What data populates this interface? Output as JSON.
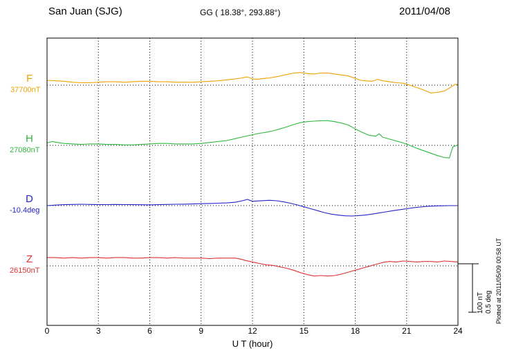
{
  "header": {
    "station": "San Juan (SJG)",
    "coordinates": "GG ( 18.38°, 293.88°)",
    "date": "2011/04/08"
  },
  "side_note": "Plotted at 2011/05/09 00:58 UT",
  "scale_bar": {
    "nt_label": "100 nT",
    "deg_label": "0.5 deg"
  },
  "chart_data": {
    "type": "line",
    "title": "San Juan (SJG) magnetogram 2011/04/08",
    "xlabel": "U T (hour)",
    "ylabel": "",
    "xlim": [
      0,
      24
    ],
    "x_ticks": [
      0,
      3,
      6,
      9,
      12,
      15,
      18,
      21,
      24
    ],
    "grid": "dotted vertical gridlines at 3-hour ticks, dotted horizontal baseline per component",
    "legend_position": "left of plot, one colored label per trace",
    "scale": {
      "per_division_nT": 100,
      "per_division_deg": 0.5
    },
    "series": [
      {
        "id": "F",
        "label": "F",
        "baseline_label": "37700nT",
        "baseline_value": 37700,
        "unit": "nT",
        "color": "#efa100",
        "points": [
          [
            0,
            10
          ],
          [
            0.5,
            9
          ],
          [
            1,
            8
          ],
          [
            1.5,
            6
          ],
          [
            2,
            5
          ],
          [
            2.5,
            5
          ],
          [
            3,
            6
          ],
          [
            3.5,
            7
          ],
          [
            4,
            7
          ],
          [
            4.5,
            6
          ],
          [
            5,
            7
          ],
          [
            5.5,
            8
          ],
          [
            6,
            8
          ],
          [
            6.5,
            7
          ],
          [
            7,
            7
          ],
          [
            7.5,
            6
          ],
          [
            8,
            6
          ],
          [
            8.5,
            6
          ],
          [
            9,
            7
          ],
          [
            9.5,
            8
          ],
          [
            10,
            9
          ],
          [
            10.5,
            11
          ],
          [
            11,
            13
          ],
          [
            11.4,
            15
          ],
          [
            11.7,
            17
          ],
          [
            12,
            13
          ],
          [
            12.3,
            12
          ],
          [
            12.7,
            14
          ],
          [
            13,
            15
          ],
          [
            13.5,
            18
          ],
          [
            14,
            22
          ],
          [
            14.4,
            25
          ],
          [
            14.8,
            26
          ],
          [
            15.2,
            24
          ],
          [
            15.6,
            23
          ],
          [
            16,
            25
          ],
          [
            16.4,
            25
          ],
          [
            16.8,
            23
          ],
          [
            17.2,
            21
          ],
          [
            17.6,
            19
          ],
          [
            18,
            14
          ],
          [
            18.3,
            10
          ],
          [
            18.6,
            9
          ],
          [
            19,
            8
          ],
          [
            19.3,
            12
          ],
          [
            19.6,
            9
          ],
          [
            20,
            7
          ],
          [
            20.4,
            5
          ],
          [
            20.8,
            4
          ],
          [
            21.2,
            0
          ],
          [
            21.6,
            -5
          ],
          [
            22,
            -10
          ],
          [
            22.4,
            -16
          ],
          [
            22.8,
            -15
          ],
          [
            23.2,
            -12
          ],
          [
            23.5,
            -6
          ],
          [
            23.8,
            1
          ],
          [
            24,
            2
          ]
        ]
      },
      {
        "id": "H",
        "label": "H",
        "baseline_label": "27080nT",
        "baseline_value": 27080,
        "unit": "nT",
        "color": "#2eb93e",
        "points": [
          [
            0,
            5
          ],
          [
            0.3,
            8
          ],
          [
            0.6,
            6
          ],
          [
            1,
            4
          ],
          [
            1.5,
            3
          ],
          [
            2,
            2
          ],
          [
            2.5,
            3
          ],
          [
            3,
            3
          ],
          [
            3.5,
            2
          ],
          [
            4,
            2
          ],
          [
            4.5,
            1
          ],
          [
            5,
            1
          ],
          [
            5.5,
            2
          ],
          [
            6,
            3
          ],
          [
            6.5,
            4
          ],
          [
            7,
            4
          ],
          [
            7.5,
            3
          ],
          [
            8,
            3
          ],
          [
            8.5,
            3
          ],
          [
            9,
            4
          ],
          [
            9.5,
            6
          ],
          [
            10,
            8
          ],
          [
            10.5,
            10
          ],
          [
            11,
            14
          ],
          [
            11.5,
            18
          ],
          [
            12,
            22
          ],
          [
            12.4,
            25
          ],
          [
            12.8,
            27
          ],
          [
            13.2,
            30
          ],
          [
            13.6,
            34
          ],
          [
            14,
            38
          ],
          [
            14.4,
            43
          ],
          [
            14.8,
            47
          ],
          [
            15.2,
            49
          ],
          [
            15.6,
            50
          ],
          [
            16,
            51
          ],
          [
            16.4,
            51
          ],
          [
            16.8,
            49
          ],
          [
            17.2,
            46
          ],
          [
            17.6,
            42
          ],
          [
            18,
            34
          ],
          [
            18.4,
            27
          ],
          [
            18.8,
            21
          ],
          [
            19.2,
            19
          ],
          [
            19.4,
            24
          ],
          [
            19.6,
            17
          ],
          [
            20,
            13
          ],
          [
            20.4,
            9
          ],
          [
            20.8,
            5
          ],
          [
            21.2,
            0
          ],
          [
            21.6,
            -6
          ],
          [
            22,
            -11
          ],
          [
            22.4,
            -16
          ],
          [
            22.8,
            -21
          ],
          [
            23.2,
            -25
          ],
          [
            23.5,
            -26
          ],
          [
            23.7,
            -3
          ],
          [
            24,
            1
          ]
        ]
      },
      {
        "id": "D",
        "label": "D",
        "baseline_label": "-10.4deg",
        "baseline_value": -10.4,
        "unit": "deg",
        "color": "#2323c8",
        "points": [
          [
            0,
            0
          ],
          [
            0.5,
            0.006
          ],
          [
            1,
            0.01
          ],
          [
            1.5,
            0.012
          ],
          [
            2,
            0.014
          ],
          [
            2.5,
            0.012
          ],
          [
            3,
            0.01
          ],
          [
            3.5,
            0.011
          ],
          [
            4,
            0.012
          ],
          [
            4.5,
            0.011
          ],
          [
            5,
            0.01
          ],
          [
            5.5,
            0.009
          ],
          [
            6,
            0.008
          ],
          [
            6.5,
            0.01
          ],
          [
            7,
            0.012
          ],
          [
            7.5,
            0.014
          ],
          [
            8,
            0.015
          ],
          [
            8.5,
            0.017
          ],
          [
            9,
            0.02
          ],
          [
            9.5,
            0.022
          ],
          [
            10,
            0.025
          ],
          [
            10.5,
            0.028
          ],
          [
            11,
            0.035
          ],
          [
            11.4,
            0.05
          ],
          [
            11.7,
            0.064
          ],
          [
            12,
            0.045
          ],
          [
            12.3,
            0.048
          ],
          [
            12.7,
            0.052
          ],
          [
            13,
            0.055
          ],
          [
            13.4,
            0.05
          ],
          [
            13.8,
            0.04
          ],
          [
            14.2,
            0.025
          ],
          [
            14.6,
            0.008
          ],
          [
            15,
            -0.012
          ],
          [
            15.4,
            -0.032
          ],
          [
            15.8,
            -0.052
          ],
          [
            16.2,
            -0.072
          ],
          [
            16.6,
            -0.088
          ],
          [
            17,
            -0.098
          ],
          [
            17.4,
            -0.105
          ],
          [
            17.8,
            -0.107
          ],
          [
            18.2,
            -0.103
          ],
          [
            18.6,
            -0.097
          ],
          [
            19,
            -0.087
          ],
          [
            19.4,
            -0.076
          ],
          [
            19.8,
            -0.064
          ],
          [
            20.2,
            -0.052
          ],
          [
            20.6,
            -0.042
          ],
          [
            21,
            -0.032
          ],
          [
            21.4,
            -0.022
          ],
          [
            21.8,
            -0.014
          ],
          [
            22.2,
            -0.008
          ],
          [
            22.6,
            -0.004
          ],
          [
            23,
            -0.002
          ],
          [
            23.5,
            0
          ],
          [
            24,
            0
          ]
        ]
      },
      {
        "id": "Z",
        "label": "Z",
        "baseline_label": "26150nT",
        "baseline_value": 26150,
        "unit": "nT",
        "color": "#dd3030",
        "points": [
          [
            0,
            17
          ],
          [
            0.5,
            17
          ],
          [
            1,
            16
          ],
          [
            1.5,
            17
          ],
          [
            2,
            16
          ],
          [
            2.5,
            17
          ],
          [
            3,
            17
          ],
          [
            3.5,
            16
          ],
          [
            4,
            17
          ],
          [
            4.5,
            17
          ],
          [
            5,
            16
          ],
          [
            5.5,
            16
          ],
          [
            6,
            17
          ],
          [
            6.5,
            17
          ],
          [
            7,
            16
          ],
          [
            7.5,
            17
          ],
          [
            8,
            16
          ],
          [
            8.5,
            16
          ],
          [
            9,
            16
          ],
          [
            9.5,
            15
          ],
          [
            10,
            16
          ],
          [
            10.5,
            16
          ],
          [
            11,
            16
          ],
          [
            11.3,
            14
          ],
          [
            11.6,
            11
          ],
          [
            12,
            8
          ],
          [
            12.4,
            5
          ],
          [
            12.8,
            2
          ],
          [
            13.2,
            1
          ],
          [
            13.6,
            -2
          ],
          [
            14,
            -5
          ],
          [
            14.4,
            -9
          ],
          [
            14.8,
            -14
          ],
          [
            15.2,
            -18
          ],
          [
            15.6,
            -21
          ],
          [
            16,
            -20
          ],
          [
            16.4,
            -21
          ],
          [
            16.8,
            -20
          ],
          [
            17.2,
            -17
          ],
          [
            17.6,
            -13
          ],
          [
            18,
            -9
          ],
          [
            18.4,
            -5
          ],
          [
            18.8,
            -1
          ],
          [
            19.2,
            3
          ],
          [
            19.6,
            7
          ],
          [
            20,
            9
          ],
          [
            20.4,
            8
          ],
          [
            20.8,
            10
          ],
          [
            21.2,
            9
          ],
          [
            21.6,
            8
          ],
          [
            22,
            9
          ],
          [
            22.4,
            9
          ],
          [
            22.8,
            8
          ],
          [
            23.2,
            10
          ],
          [
            23.6,
            9
          ],
          [
            24,
            8
          ]
        ]
      }
    ]
  }
}
